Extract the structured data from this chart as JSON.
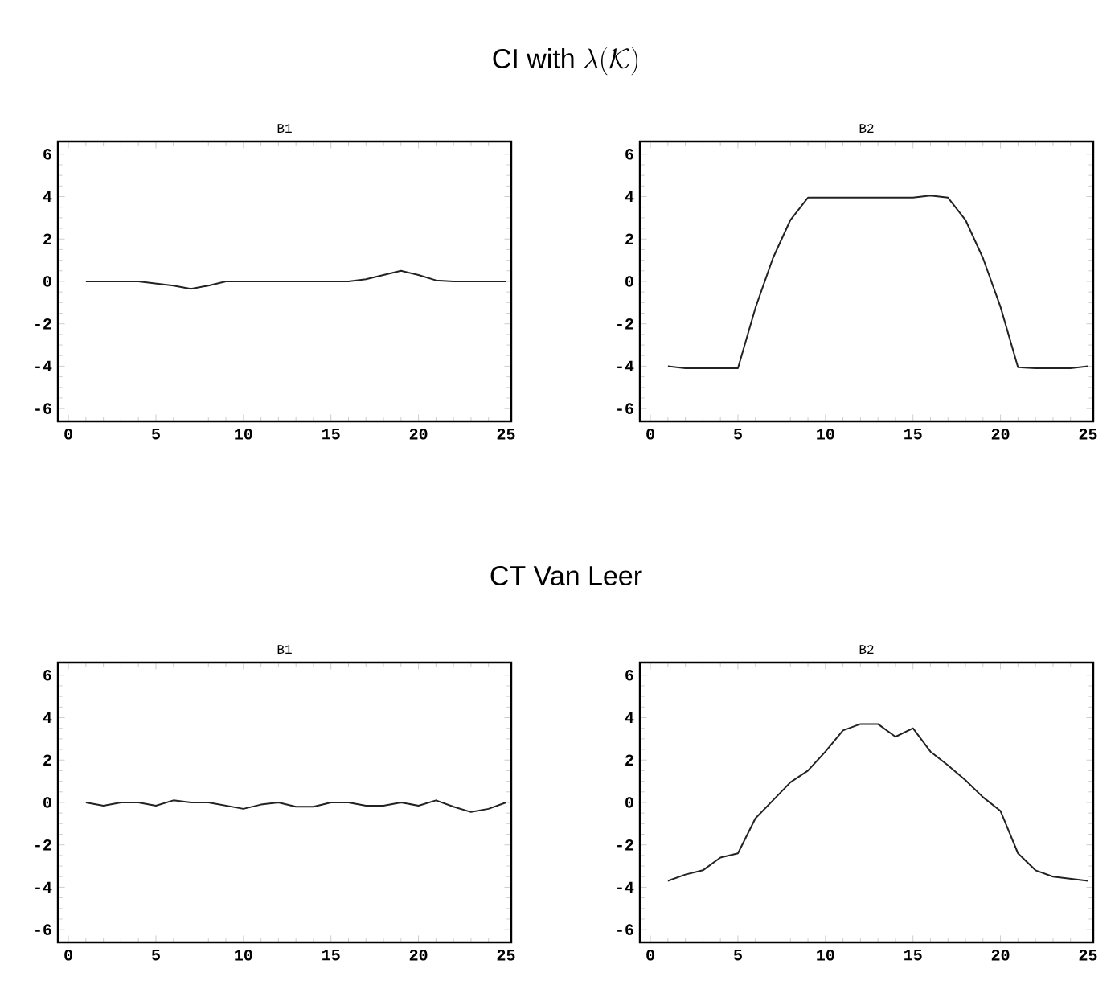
{
  "chart_data": [
    {
      "type": "line",
      "title": "\\mbox{CI with }\\lambda(\\mathcal{K})",
      "subtitle": "B1",
      "color": "#222222",
      "xlim": [
        -0.6,
        25.3
      ],
      "ylim": [
        -6.6,
        6.6
      ],
      "xticks": [
        0,
        5,
        10,
        15,
        20,
        25
      ],
      "yticks": [
        -6,
        -4,
        -2,
        0,
        2,
        4,
        6
      ],
      "x": [
        1,
        2,
        3,
        4,
        5,
        6,
        7,
        8,
        9,
        10,
        11,
        12,
        13,
        14,
        15,
        16,
        17,
        18,
        19,
        20,
        21,
        22,
        23,
        24,
        25
      ],
      "values": [
        0,
        0,
        0,
        0,
        -0.1,
        -0.2,
        -0.35,
        -0.2,
        0,
        0,
        0,
        0,
        0,
        0,
        0,
        0,
        0.1,
        0.3,
        0.5,
        0.3,
        0.05,
        0,
        0,
        0,
        0
      ]
    },
    {
      "type": "line",
      "title": "B2",
      "color": "#222222",
      "xlim": [
        -0.6,
        25.3
      ],
      "ylim": [
        -6.6,
        6.6
      ],
      "xticks": [
        0,
        5,
        10,
        15,
        20,
        25
      ],
      "yticks": [
        -6,
        -4,
        -2,
        0,
        2,
        4,
        6
      ],
      "x": [
        1,
        2,
        3,
        4,
        5,
        6,
        7,
        8,
        9,
        10,
        11,
        12,
        13,
        14,
        15,
        16,
        17,
        18,
        19,
        20,
        21,
        22,
        23,
        24,
        25
      ],
      "values": [
        -4,
        -4.1,
        -4.1,
        -4.1,
        -4.1,
        -1.25,
        1.1,
        2.9,
        3.95,
        3.95,
        3.95,
        3.95,
        3.95,
        3.95,
        3.95,
        4.05,
        3.95,
        2.9,
        1.1,
        -1.2,
        -4.05,
        -4.1,
        -4.1,
        -4.1,
        -4
      ]
    },
    {
      "type": "line",
      "title": "CT Van Leer",
      "subtitle": "B1",
      "color": "#222222",
      "xlim": [
        -0.6,
        25.3
      ],
      "ylim": [
        -6.6,
        6.6
      ],
      "xticks": [
        0,
        5,
        10,
        15,
        20,
        25
      ],
      "yticks": [
        -6,
        -4,
        -2,
        0,
        2,
        4,
        6
      ],
      "x": [
        1,
        2,
        3,
        4,
        5,
        6,
        7,
        8,
        9,
        10,
        11,
        12,
        13,
        14,
        15,
        16,
        17,
        18,
        19,
        20,
        21,
        22,
        23,
        24,
        25
      ],
      "values": [
        0,
        -0.15,
        0,
        0,
        -0.15,
        0.1,
        0,
        0,
        -0.15,
        -0.3,
        -0.1,
        0,
        -0.2,
        -0.2,
        0,
        0,
        -0.15,
        -0.15,
        0,
        -0.15,
        0.1,
        -0.2,
        -0.45,
        -0.3,
        0
      ]
    },
    {
      "type": "line",
      "title": "B2",
      "color": "#222222",
      "xlim": [
        -0.6,
        25.3
      ],
      "ylim": [
        -6.6,
        6.6
      ],
      "xticks": [
        0,
        5,
        10,
        15,
        20,
        25
      ],
      "yticks": [
        -6,
        -4,
        -2,
        0,
        2,
        4,
        6
      ],
      "x": [
        1,
        2,
        3,
        4,
        5,
        6,
        7,
        8,
        9,
        10,
        11,
        12,
        13,
        14,
        15,
        16,
        17,
        18,
        19,
        20,
        21,
        22,
        23,
        24,
        25
      ],
      "values": [
        -3.7,
        -3.4,
        -3.2,
        -2.6,
        -2.4,
        -0.75,
        0.1,
        0.95,
        1.5,
        2.4,
        3.4,
        3.7,
        3.7,
        3.1,
        3.5,
        2.4,
        1.75,
        1.05,
        0.25,
        -0.4,
        -2.4,
        -3.2,
        -3.5,
        -3.6,
        -3.7
      ]
    }
  ]
}
